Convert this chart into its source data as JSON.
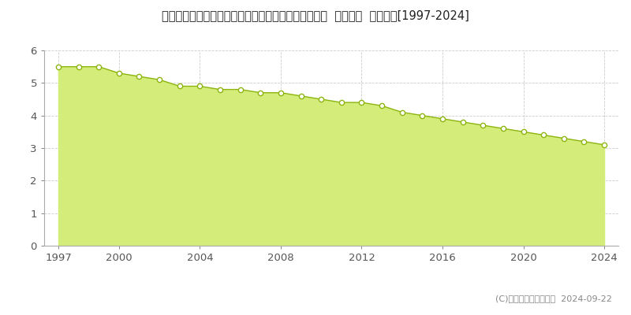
{
  "title": "宮崎県西諸県郡高原町大字西麓字下馬場１１１９番２  基準地価  地価推移[1997-2024]",
  "years": [
    1997,
    1998,
    1999,
    2000,
    2001,
    2002,
    2003,
    2004,
    2005,
    2006,
    2007,
    2008,
    2009,
    2010,
    2011,
    2012,
    2013,
    2014,
    2015,
    2016,
    2017,
    2018,
    2019,
    2020,
    2021,
    2022,
    2023,
    2024
  ],
  "values": [
    5.5,
    5.5,
    5.5,
    5.3,
    5.2,
    5.1,
    4.9,
    4.9,
    4.8,
    4.8,
    4.7,
    4.7,
    4.6,
    4.5,
    4.4,
    4.4,
    4.3,
    4.1,
    4.0,
    3.9,
    3.8,
    3.7,
    3.6,
    3.5,
    3.4,
    3.3,
    3.2,
    3.1
  ],
  "line_color": "#8db510",
  "fill_color": "#d4ed7a",
  "fill_alpha": 1.0,
  "marker_color": "white",
  "marker_edge_color": "#8db510",
  "ylim": [
    0,
    6
  ],
  "yticks": [
    0,
    1,
    2,
    3,
    4,
    5,
    6
  ],
  "xticks": [
    1997,
    2000,
    2004,
    2008,
    2012,
    2016,
    2020,
    2024
  ],
  "copyright_text": "(C)土地価格ドットコム  2024-09-22",
  "bg_color": "#ffffff",
  "grid_color": "#cccccc",
  "title_fontsize": 10.5,
  "tick_fontsize": 9.5
}
